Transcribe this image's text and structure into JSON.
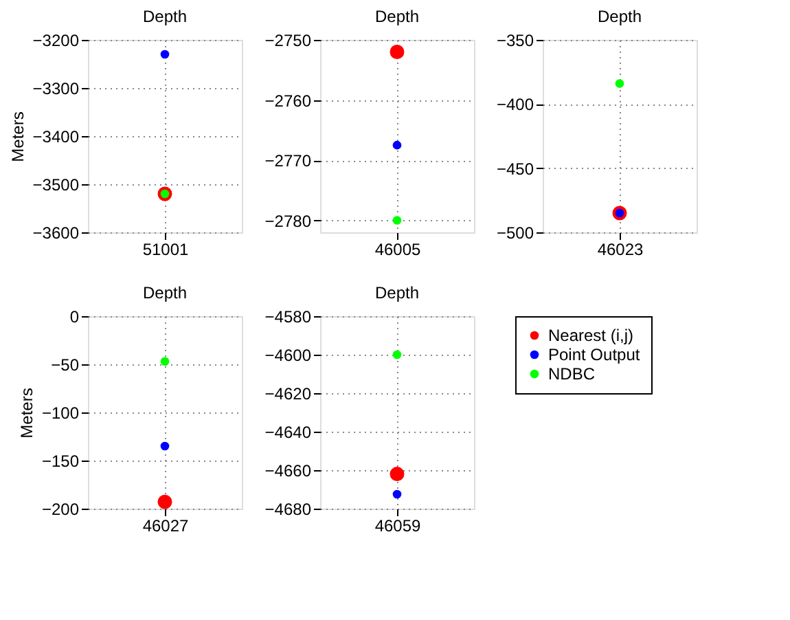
{
  "chart_data": [
    {
      "type": "scatter",
      "title": "Depth",
      "ylabel": "Meters",
      "categories": [
        "51001"
      ],
      "ylim": [
        -3600,
        -3200
      ],
      "yticks": [
        -3600,
        -3500,
        -3400,
        -3300,
        -3200
      ],
      "grid": true,
      "marker": "circle",
      "legend": false,
      "series": [
        {
          "color": "#ff0000",
          "values": [
            -3520
          ]
        },
        {
          "color": "#0000ff",
          "values": [
            -3230
          ]
        },
        {
          "color": "#00ff00",
          "values": [
            -3520
          ]
        }
      ]
    },
    {
      "type": "scatter",
      "title": "Depth",
      "categories": [
        "46005"
      ],
      "ylim": [
        -2782,
        -2750
      ],
      "yticks": [
        -2780,
        -2770,
        -2760,
        -2750
      ],
      "grid": true,
      "marker": "circle",
      "legend": false,
      "series": [
        {
          "color": "#ff0000",
          "values": [
            -2752
          ]
        },
        {
          "color": "#0000ff",
          "values": [
            -2767.5
          ]
        },
        {
          "color": "#00ff00",
          "values": [
            -2780
          ]
        }
      ]
    },
    {
      "type": "scatter",
      "title": "Depth",
      "categories": [
        "46023"
      ],
      "ylim": [
        -500,
        -350
      ],
      "yticks": [
        -500,
        -450,
        -400,
        -350
      ],
      "grid": true,
      "marker": "circle",
      "legend": false,
      "series": [
        {
          "color": "#ff0000",
          "values": [
            -485
          ]
        },
        {
          "color": "#0000ff",
          "values": [
            -485
          ]
        },
        {
          "color": "#00ff00",
          "values": [
            -384
          ]
        }
      ]
    },
    {
      "type": "scatter",
      "title": "Depth",
      "ylabel": "Meters",
      "categories": [
        "46027"
      ],
      "ylim": [
        -200,
        0
      ],
      "yticks": [
        -200,
        -150,
        -100,
        -50,
        0
      ],
      "grid": true,
      "marker": "circle",
      "legend": false,
      "series": [
        {
          "color": "#ff0000",
          "values": [
            -193
          ]
        },
        {
          "color": "#0000ff",
          "values": [
            -135
          ]
        },
        {
          "color": "#00ff00",
          "values": [
            -47
          ]
        }
      ]
    },
    {
      "type": "scatter",
      "title": "Depth",
      "categories": [
        "46059"
      ],
      "ylim": [
        -4680,
        -4580
      ],
      "yticks": [
        -4680,
        -4660,
        -4640,
        -4620,
        -4600,
        -4580
      ],
      "grid": true,
      "marker": "circle",
      "legend": "right",
      "series": [
        {
          "name": "Nearest (i,j)",
          "color": "#ff0000",
          "values": [
            -4662
          ]
        },
        {
          "name": "Point Output",
          "color": "#0000ff",
          "values": [
            -4672.5
          ]
        },
        {
          "name": "NDBC",
          "color": "#00ff00",
          "values": [
            -4600
          ]
        }
      ]
    }
  ]
}
